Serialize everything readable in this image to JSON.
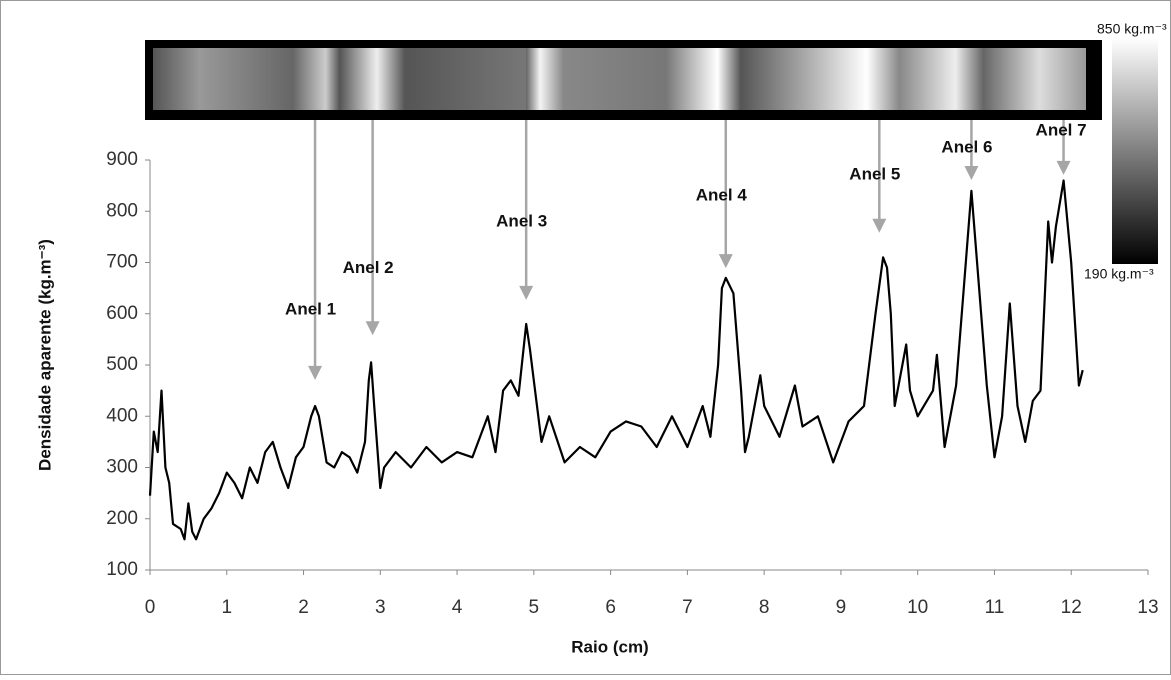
{
  "chart_data": {
    "type": "line",
    "x_label": "Raio (cm)",
    "y_label": "Densidade aparente (kg.m⁻³)",
    "xlim": [
      0,
      13
    ],
    "xticks": [
      0,
      1,
      2,
      3,
      4,
      5,
      6,
      7,
      8,
      9,
      10,
      11,
      12,
      13
    ],
    "ylim": [
      100,
      900
    ],
    "yticks": [
      100,
      200,
      300,
      400,
      500,
      600,
      700,
      800,
      900
    ],
    "grid": false,
    "series": [
      {
        "color": "#000000",
        "x": [
          0,
          0.05,
          0.1,
          0.15,
          0.2,
          0.25,
          0.3,
          0.4,
          0.45,
          0.5,
          0.55,
          0.6,
          0.7,
          0.8,
          0.9,
          1.0,
          1.1,
          1.2,
          1.3,
          1.4,
          1.5,
          1.6,
          1.7,
          1.8,
          1.9,
          2.0,
          2.1,
          2.15,
          2.2,
          2.3,
          2.4,
          2.5,
          2.6,
          2.7,
          2.8,
          2.85,
          2.88,
          2.92,
          3.0,
          3.05,
          3.2,
          3.4,
          3.6,
          3.8,
          4.0,
          4.2,
          4.4,
          4.5,
          4.6,
          4.7,
          4.8,
          4.9,
          4.95,
          5.0,
          5.1,
          5.2,
          5.4,
          5.6,
          5.8,
          6.0,
          6.2,
          6.4,
          6.6,
          6.8,
          7.0,
          7.2,
          7.3,
          7.4,
          7.45,
          7.5,
          7.6,
          7.7,
          7.75,
          7.8,
          7.95,
          8.0,
          8.2,
          8.4,
          8.5,
          8.7,
          8.9,
          9.1,
          9.3,
          9.45,
          9.55,
          9.6,
          9.65,
          9.7,
          9.85,
          9.9,
          10.0,
          10.2,
          10.25,
          10.35,
          10.5,
          10.6,
          10.7,
          10.8,
          10.9,
          11.0,
          11.1,
          11.2,
          11.3,
          11.4,
          11.5,
          11.6,
          11.7,
          11.75,
          11.8,
          11.9,
          12.0,
          12.1,
          12.15
        ],
        "values": [
          245,
          370,
          330,
          450,
          300,
          270,
          190,
          180,
          160,
          230,
          175,
          160,
          200,
          220,
          250,
          290,
          270,
          240,
          300,
          270,
          330,
          350,
          300,
          260,
          320,
          340,
          400,
          420,
          400,
          310,
          300,
          330,
          320,
          290,
          350,
          470,
          505,
          420,
          260,
          300,
          330,
          300,
          340,
          310,
          330,
          320,
          400,
          330,
          450,
          470,
          440,
          580,
          530,
          470,
          350,
          400,
          310,
          340,
          320,
          370,
          390,
          380,
          340,
          400,
          340,
          420,
          360,
          500,
          650,
          670,
          640,
          450,
          330,
          360,
          480,
          420,
          360,
          460,
          380,
          400,
          310,
          390,
          420,
          600,
          710,
          690,
          600,
          420,
          540,
          450,
          400,
          450,
          520,
          340,
          460,
          650,
          840,
          650,
          460,
          320,
          400,
          620,
          420,
          350,
          430,
          450,
          780,
          700,
          770,
          860,
          700,
          460,
          490
        ]
      }
    ],
    "annotations": [
      {
        "text": "Anel 1",
        "x": 2.15,
        "y": 471
      },
      {
        "text": "Anel 2",
        "x": 2.9,
        "y": 558
      },
      {
        "text": "Anel 3",
        "x": 4.9,
        "y": 627
      },
      {
        "text": "Anel 4",
        "x": 7.5,
        "y": 689
      },
      {
        "text": "Anel 5",
        "x": 9.5,
        "y": 758
      },
      {
        "text": "Anel 6",
        "x": 10.7,
        "y": 861
      },
      {
        "text": "Anel 7",
        "x": 11.9,
        "y": 871
      }
    ],
    "colorbar": {
      "top_label": "850 kg.m⁻³",
      "bottom_label": "190 kg.m⁻³"
    }
  }
}
